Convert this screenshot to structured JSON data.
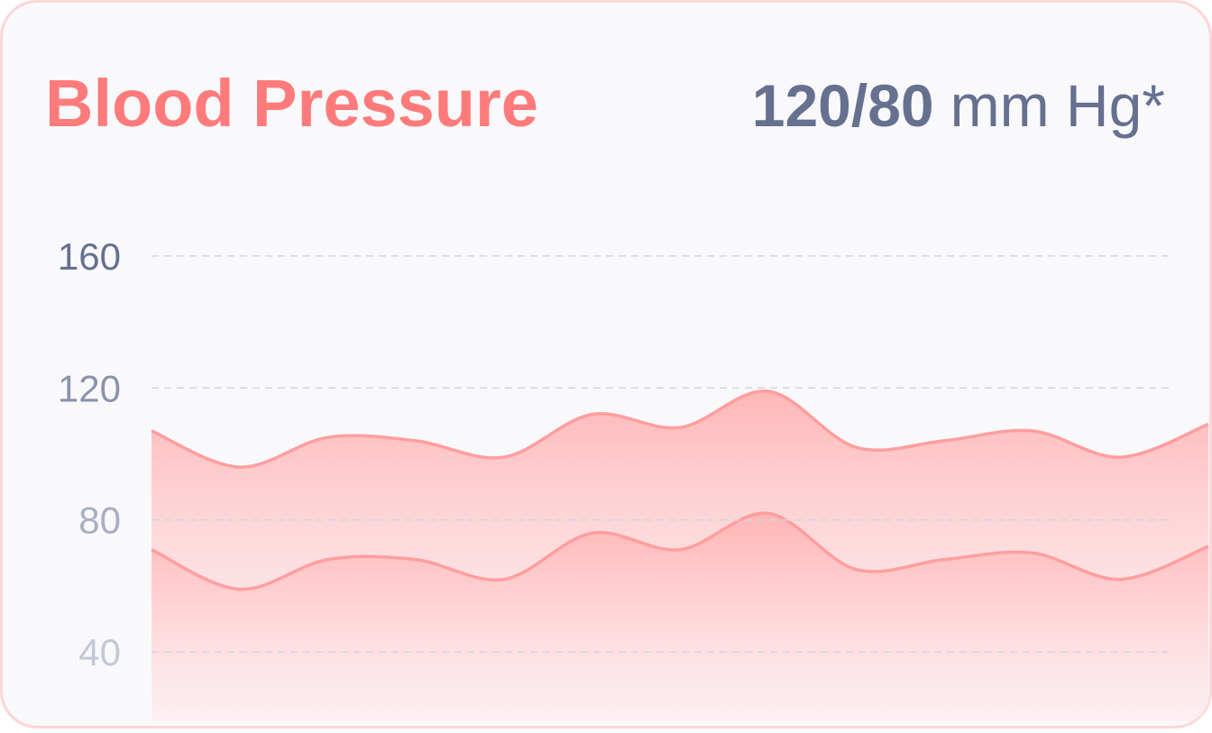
{
  "chart_data": {
    "type": "area",
    "title": "Blood Pressure",
    "reading": "120/80",
    "unit": "mm Hg*",
    "categories": [
      null,
      null,
      null,
      null,
      null,
      null,
      null,
      null,
      null,
      null,
      null,
      null,
      null
    ],
    "series": [
      {
        "color": "#ff9e9e",
        "values": [
          107,
          96,
          105,
          104,
          99,
          112,
          108,
          119,
          102,
          104,
          107,
          99,
          109
        ]
      },
      {
        "color": "#ff9e9e",
        "values": [
          71,
          59,
          68,
          68,
          62,
          76,
          71,
          82,
          65,
          68,
          70,
          62,
          72
        ]
      }
    ],
    "ylim": [
      19,
      190
    ],
    "yticks": [
      40,
      80,
      120,
      160
    ],
    "ytick_colors": [
      "#c3c8d6",
      "#a9afc2",
      "#8a93ab",
      "#66708f"
    ],
    "grid": true
  }
}
